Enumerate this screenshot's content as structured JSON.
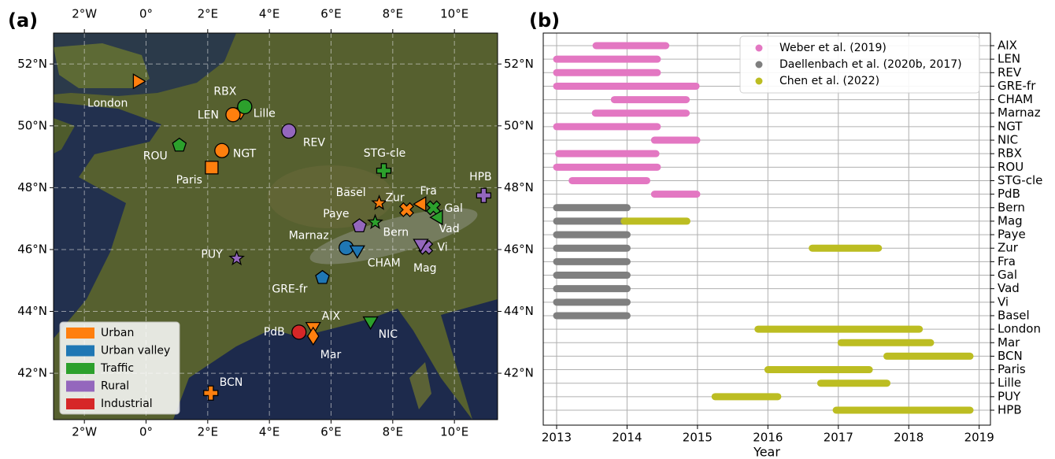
{
  "chart_data": [
    {
      "type": "map",
      "panel_label": "(a)",
      "xlim": [
        -3,
        11.4
      ],
      "ylim": [
        40.5,
        53
      ],
      "xticks": [
        {
          "value": -2,
          "label": "2°W"
        },
        {
          "value": 0,
          "label": "0°"
        },
        {
          "value": 2,
          "label": "2°E"
        },
        {
          "value": 4,
          "label": "4°E"
        },
        {
          "value": 6,
          "label": "6°E"
        },
        {
          "value": 8,
          "label": "8°E"
        },
        {
          "value": 10,
          "label": "10°E"
        }
      ],
      "yticks": [
        {
          "value": 42,
          "label": "42°N"
        },
        {
          "value": 44,
          "label": "44°N"
        },
        {
          "value": 46,
          "label": "46°N"
        },
        {
          "value": 48,
          "label": "48°N"
        },
        {
          "value": 50,
          "label": "50°N"
        },
        {
          "value": 52,
          "label": "52°N"
        }
      ],
      "grid": true,
      "legend": "lower left",
      "series": [
        {
          "name": "Urban",
          "color": "#ff7f0e",
          "points": [
            {
              "label": "London",
              "x": -0.25,
              "y": 51.44,
              "marker": "triangle-right"
            },
            {
              "label": "Lille",
              "x": 3.07,
              "y": 50.49,
              "marker": "diamond"
            },
            {
              "label": "LEN",
              "x": 2.82,
              "y": 50.36,
              "marker": "circle"
            },
            {
              "label": "NGT",
              "x": 2.46,
              "y": 49.2,
              "marker": "circle"
            },
            {
              "label": "Paris",
              "x": 2.13,
              "y": 48.65,
              "marker": "square"
            },
            {
              "label": "Basel",
              "x": 7.56,
              "y": 47.5,
              "marker": "star"
            },
            {
              "label": "Zur",
              "x": 8.45,
              "y": 47.29,
              "marker": "x"
            },
            {
              "label": "Fra",
              "x": 8.91,
              "y": 47.47,
              "marker": "triangle-left"
            },
            {
              "label": "AIX",
              "x": 5.42,
              "y": 43.48,
              "marker": "triangle-down"
            },
            {
              "label": "Mar",
              "x": 5.42,
              "y": 43.2,
              "marker": "diamond"
            },
            {
              "label": "BCN",
              "x": 2.1,
              "y": 41.36,
              "marker": "plus"
            }
          ]
        },
        {
          "name": "Urban valley",
          "color": "#1f77b4",
          "points": [
            {
              "label": "Marnaz",
              "x": 6.49,
              "y": 46.06,
              "marker": "circle"
            },
            {
              "label": "CHAM",
              "x": 6.85,
              "y": 45.96,
              "marker": "triangle-down"
            },
            {
              "label": "GRE-fr",
              "x": 5.72,
              "y": 45.09,
              "marker": "pentagon"
            }
          ]
        },
        {
          "name": "Traffic",
          "color": "#2ca02c",
          "points": [
            {
              "label": "RBX",
              "x": 3.2,
              "y": 50.62,
              "marker": "circle"
            },
            {
              "label": "ROU",
              "x": 1.08,
              "y": 49.37,
              "marker": "pentagon"
            },
            {
              "label": "STG-cle",
              "x": 7.71,
              "y": 48.55,
              "marker": "plus"
            },
            {
              "label": "Gal",
              "x": 9.32,
              "y": 47.35,
              "marker": "x"
            },
            {
              "label": "Vad",
              "x": 9.45,
              "y": 47.04,
              "marker": "triangle-left"
            },
            {
              "label": "Bern",
              "x": 7.43,
              "y": 46.88,
              "marker": "star"
            },
            {
              "label": "NIC",
              "x": 7.28,
              "y": 43.66,
              "marker": "triangle-down"
            }
          ]
        },
        {
          "name": "Rural",
          "color": "#9467bd",
          "points": [
            {
              "label": "REV",
              "x": 4.63,
              "y": 49.83,
              "marker": "circle"
            },
            {
              "label": "HPB",
              "x": 10.95,
              "y": 47.75,
              "marker": "plus"
            },
            {
              "label": "Paye",
              "x": 6.92,
              "y": 46.76,
              "marker": "pentagon"
            },
            {
              "label": "Mag",
              "x": 9.07,
              "y": 46.07,
              "marker": "x"
            },
            {
              "label": "Vi",
              "x": 8.91,
              "y": 46.17,
              "marker": "triangle-down"
            },
            {
              "label": "PUY",
              "x": 2.94,
              "y": 45.71,
              "marker": "star"
            }
          ]
        },
        {
          "name": "Industrial",
          "color": "#d62728",
          "points": [
            {
              "label": "PdB",
              "x": 4.96,
              "y": 43.33,
              "marker": "circle"
            }
          ]
        }
      ]
    },
    {
      "type": "timeline",
      "panel_label": "(b)",
      "xlabel": "Year",
      "xlim": [
        2012.81,
        2019.16
      ],
      "xticks": [
        2013,
        2014,
        2015,
        2016,
        2017,
        2018,
        2019
      ],
      "grid": true,
      "legend": "upper right",
      "categories": [
        "AIX",
        "LEN",
        "REV",
        "GRE-fr",
        "CHAM",
        "Marnaz",
        "NGT",
        "NIC",
        "RBX",
        "ROU",
        "STG-cle",
        "PdB",
        "Bern",
        "Mag",
        "Paye",
        "Zur",
        "Fra",
        "Gal",
        "Vad",
        "Vi",
        "Basel",
        "London",
        "Mar",
        "BCN",
        "Paris",
        "Lille",
        "PUY",
        "HPB"
      ],
      "series": [
        {
          "name": "Weber et al. (2019)",
          "color": "#e377c2",
          "segments": [
            {
              "category": "AIX",
              "start": 2013.56,
              "end": 2014.55
            },
            {
              "category": "LEN",
              "start": 2013.0,
              "end": 2014.43
            },
            {
              "category": "REV",
              "start": 2013.0,
              "end": 2014.43
            },
            {
              "category": "GRE-fr",
              "start": 2013.0,
              "end": 2014.98
            },
            {
              "category": "CHAM",
              "start": 2013.82,
              "end": 2014.84
            },
            {
              "category": "Marnaz",
              "start": 2013.55,
              "end": 2014.84
            },
            {
              "category": "NGT",
              "start": 2013.0,
              "end": 2014.43
            },
            {
              "category": "NIC",
              "start": 2014.39,
              "end": 2014.99
            },
            {
              "category": "RBX",
              "start": 2013.03,
              "end": 2014.41
            },
            {
              "category": "ROU",
              "start": 2013.0,
              "end": 2014.43
            },
            {
              "category": "STG-cle",
              "start": 2013.22,
              "end": 2014.28
            },
            {
              "category": "PdB",
              "start": 2014.39,
              "end": 2014.99
            }
          ]
        },
        {
          "name": "Daellenbach et al. (2020b, 2017)",
          "color": "#7f7f7f",
          "segments": [
            {
              "category": "Bern",
              "start": 2013.0,
              "end": 2014.0
            },
            {
              "category": "Mag",
              "start": 2013.0,
              "end": 2014.0
            },
            {
              "category": "Paye",
              "start": 2013.0,
              "end": 2014.0
            },
            {
              "category": "Zur",
              "start": 2013.0,
              "end": 2014.0
            },
            {
              "category": "Fra",
              "start": 2013.0,
              "end": 2014.0
            },
            {
              "category": "Gal",
              "start": 2013.0,
              "end": 2014.0
            },
            {
              "category": "Vad",
              "start": 2013.0,
              "end": 2014.0
            },
            {
              "category": "Vi",
              "start": 2013.0,
              "end": 2014.0
            },
            {
              "category": "Basel",
              "start": 2013.0,
              "end": 2014.0
            }
          ]
        },
        {
          "name": "Chen et al. (2022)",
          "color": "#bcbd22",
          "segments": [
            {
              "category": "Mag",
              "start": 2013.96,
              "end": 2014.85
            },
            {
              "category": "Zur",
              "start": 2016.63,
              "end": 2017.57
            },
            {
              "category": "London",
              "start": 2015.86,
              "end": 2018.15
            },
            {
              "category": "Mar",
              "start": 2017.04,
              "end": 2018.31
            },
            {
              "category": "BCN",
              "start": 2017.69,
              "end": 2018.87
            },
            {
              "category": "Paris",
              "start": 2016.0,
              "end": 2017.44
            },
            {
              "category": "Lille",
              "start": 2016.75,
              "end": 2017.69
            },
            {
              "category": "PUY",
              "start": 2015.25,
              "end": 2016.14
            },
            {
              "category": "HPB",
              "start": 2016.97,
              "end": 2018.87
            }
          ]
        }
      ]
    }
  ]
}
